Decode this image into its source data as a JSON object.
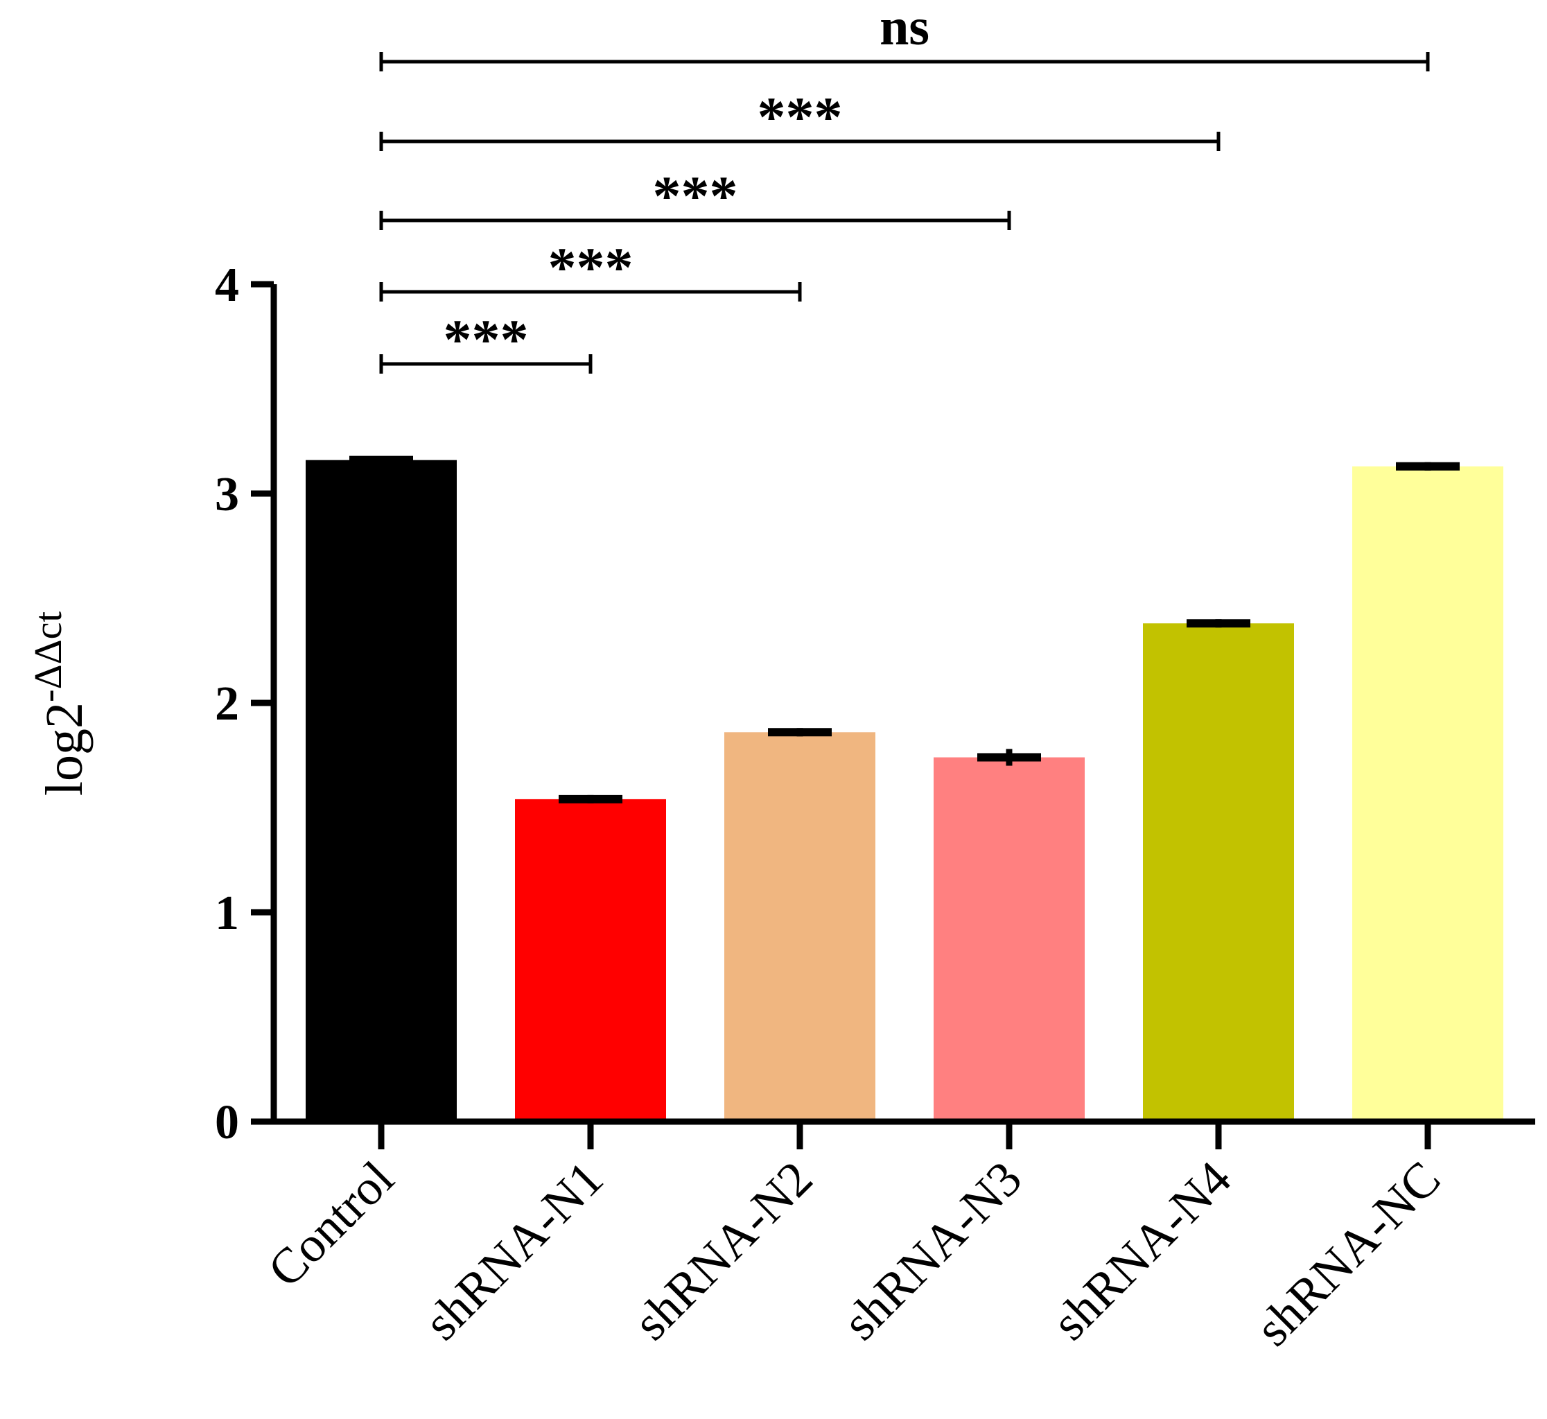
{
  "chart_data": {
    "type": "bar",
    "categories": [
      "Control",
      "shRNA-N1",
      "shRNA-N2",
      "shRNA-N3",
      "shRNA-N4",
      "shRNA-NC"
    ],
    "values": [
      3.16,
      1.54,
      1.86,
      1.74,
      2.38,
      3.13
    ],
    "errors": [
      0.01,
      0.02,
      0.02,
      0.04,
      0.02,
      0.02
    ],
    "colors": [
      "#000000",
      "#ff0000",
      "#f0b680",
      "#ff8080",
      "#c2c200",
      "#ffff9a"
    ],
    "ylabel_base": "log2",
    "ylabel_sup": "-ΔΔct",
    "ylim": [
      0,
      4
    ],
    "yticks": [
      "0",
      "1",
      "2",
      "3",
      "4"
    ],
    "comparisons": [
      {
        "from": "Control",
        "to": "shRNA-N1",
        "label": "***"
      },
      {
        "from": "Control",
        "to": "shRNA-N2",
        "label": "***"
      },
      {
        "from": "Control",
        "to": "shRNA-N3",
        "label": "***"
      },
      {
        "from": "Control",
        "to": "shRNA-N4",
        "label": "***"
      },
      {
        "from": "Control",
        "to": "shRNA-NC",
        "label": "ns"
      }
    ]
  }
}
